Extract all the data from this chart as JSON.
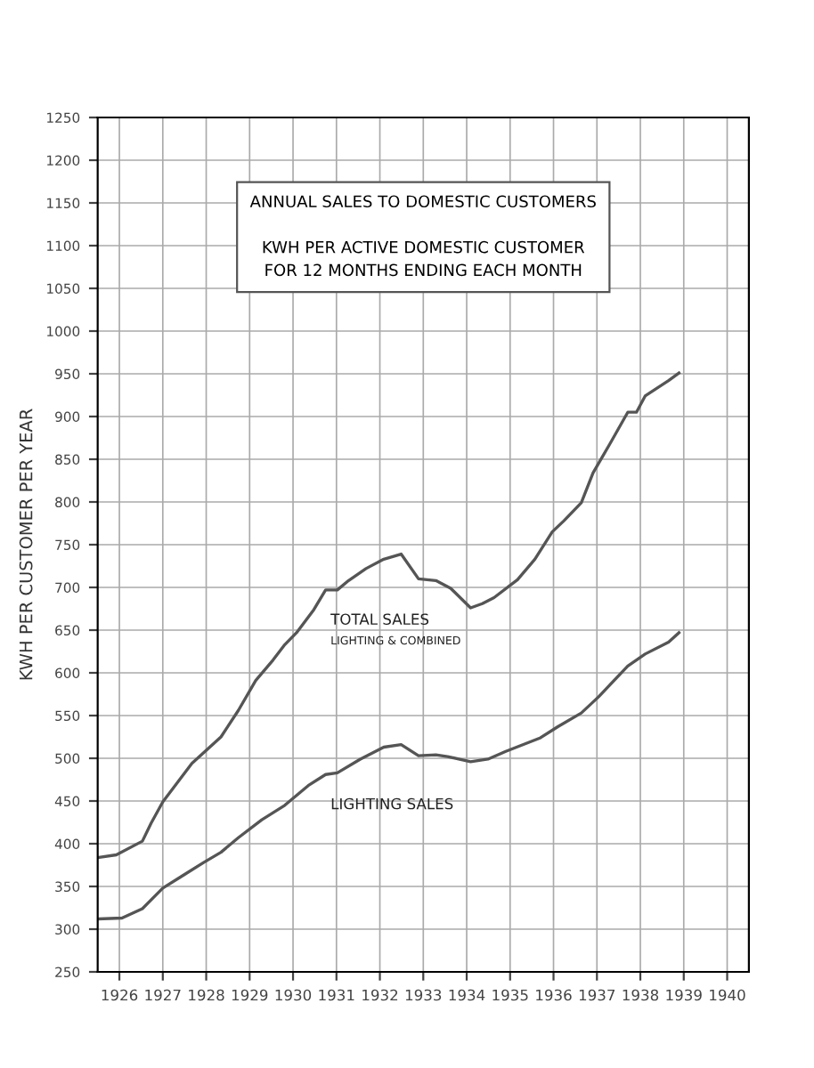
{
  "chart_data": {
    "type": "line",
    "title": "ANNUAL SALES TO DOMESTIC CUSTOMERS",
    "subtitle": "KWH PER ACTIVE DOMESTIC CUSTOMER\nFOR 12 MONTHS ENDING EACH MONTH",
    "ylabel": "KWH PER CUSTOMER PER YEAR",
    "series": [
      {
        "name": "TOTAL SALES",
        "color": "#555555",
        "x": [
          1926.03,
          1926.43,
          1927.03,
          1927.23,
          1927.5,
          1928.17,
          1928.84,
          1929.24,
          1929.64,
          1930.04,
          1930.31,
          1930.58,
          1930.98,
          1931.25,
          1931.52,
          1931.78,
          1932.18,
          1932.59,
          1932.99,
          1933.39,
          1933.79,
          1934.13,
          1934.59,
          1934.86,
          1935.13,
          1935.67,
          1936.07,
          1936.47,
          1936.74,
          1937.14,
          1937.41,
          1937.81,
          1938.21,
          1938.41,
          1938.61,
          1939.15,
          1939.39
        ],
        "values": [
          384,
          387,
          403,
          424,
          449,
          494,
          525,
          556,
          591,
          615,
          633,
          647,
          674,
          697,
          697,
          708,
          722,
          733,
          739,
          710,
          708,
          699,
          676,
          681,
          688,
          709,
          733,
          765,
          778,
          799,
          834,
          869,
          905,
          905,
          924,
          942,
          951
        ]
      },
      {
        "name": "LIGHTING SALES",
        "color": "#555555",
        "x": [
          1926.03,
          1926.56,
          1927.03,
          1927.5,
          1927.97,
          1928.44,
          1928.84,
          1929.24,
          1929.78,
          1930.31,
          1930.85,
          1931.25,
          1931.52,
          1932.05,
          1932.59,
          1932.99,
          1933.39,
          1933.79,
          1934.06,
          1934.59,
          1934.99,
          1935.4,
          1936.2,
          1936.6,
          1937.14,
          1937.54,
          1938.21,
          1938.61,
          1939.15,
          1939.39
        ],
        "values": [
          312,
          313,
          324,
          348,
          363,
          378,
          390,
          407,
          428,
          445,
          468,
          481,
          483,
          499,
          513,
          516,
          503,
          504,
          502,
          496,
          499,
          508,
          524,
          537,
          553,
          572,
          608,
          622,
          636,
          647
        ]
      }
    ],
    "annotations": [
      "LIGHTING & COMBINED"
    ],
    "xlim": [
      1926,
      1941
    ],
    "xticks": [
      {
        "value": 1926.5,
        "label": "1926"
      },
      {
        "value": 1927.5,
        "label": "1927"
      },
      {
        "value": 1928.5,
        "label": "1928"
      },
      {
        "value": 1929.5,
        "label": "1929"
      },
      {
        "value": 1930.5,
        "label": "1930"
      },
      {
        "value": 1931.5,
        "label": "1931"
      },
      {
        "value": 1932.5,
        "label": "1932"
      },
      {
        "value": 1933.5,
        "label": "1933"
      },
      {
        "value": 1934.5,
        "label": "1934"
      },
      {
        "value": 1935.5,
        "label": "1935"
      },
      {
        "value": 1936.5,
        "label": "1936"
      },
      {
        "value": 1937.5,
        "label": "1937"
      },
      {
        "value": 1938.5,
        "label": "1938"
      },
      {
        "value": 1939.5,
        "label": "1939"
      },
      {
        "value": 1940.5,
        "label": "1940"
      }
    ],
    "ylim": [
      250,
      1250
    ],
    "yticks": [
      250,
      300,
      350,
      400,
      450,
      500,
      550,
      600,
      650,
      700,
      750,
      800,
      850,
      900,
      950,
      1000,
      1050,
      1100,
      1150,
      1200,
      1250
    ],
    "grid": true,
    "marker": "none",
    "line_style": "solid"
  }
}
